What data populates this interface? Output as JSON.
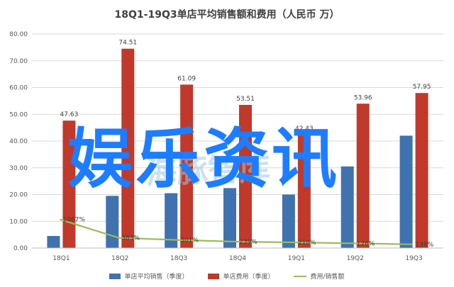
{
  "overlay": {
    "text": "娱乐资讯",
    "watermark": "海豚智库"
  },
  "colors": {
    "sales": "#3f72af",
    "expense": "#c0392b",
    "ratio": "#9bbb59",
    "axis_text": "#595959",
    "grid": "#d9d9d9",
    "overlay": "#1e7dff"
  },
  "chart_data": {
    "type": "bar",
    "title": "18Q1-19Q3单店平均销售额和费用（人民币 万）",
    "categories": [
      "18Q1",
      "18Q2",
      "18Q3",
      "18Q4",
      "19Q1",
      "19Q2",
      "19Q3"
    ],
    "series": [
      {
        "name": "单店平均销售（季度）",
        "type": "bar",
        "values": [
          4.5,
          19.5,
          20.5,
          22.4,
          20.0,
          30.5,
          42.0
        ],
        "labels": [
          "",
          "",
          "",
          "",
          "",
          "",
          ""
        ]
      },
      {
        "name": "单店费用（季度）",
        "type": "bar",
        "values": [
          47.63,
          74.51,
          61.09,
          53.51,
          42.43,
          53.96,
          57.95
        ],
        "labels": [
          "47.63",
          "74.51",
          "61.09",
          "53.51",
          "42.43",
          "53.96",
          "57.95"
        ]
      },
      {
        "name": "费用/销售额",
        "type": "line",
        "values": [
          10.67,
          3.83,
          3.01,
          2.39,
          2.1,
          1.76,
          1.38
        ],
        "labels": [
          "1067%",
          "383%",
          "301%",
          "239%",
          "210%",
          "176%",
          "138%"
        ]
      }
    ],
    "ylim": [
      0,
      80
    ],
    "yticks": [
      "0.00",
      "10.00",
      "20.00",
      "30.00",
      "40.00",
      "50.00",
      "60.00",
      "70.00",
      "80.00"
    ],
    "ytick_values": [
      0,
      10,
      20,
      30,
      40,
      50,
      60,
      70,
      80
    ],
    "grid": true,
    "legend_position": "bottom"
  }
}
